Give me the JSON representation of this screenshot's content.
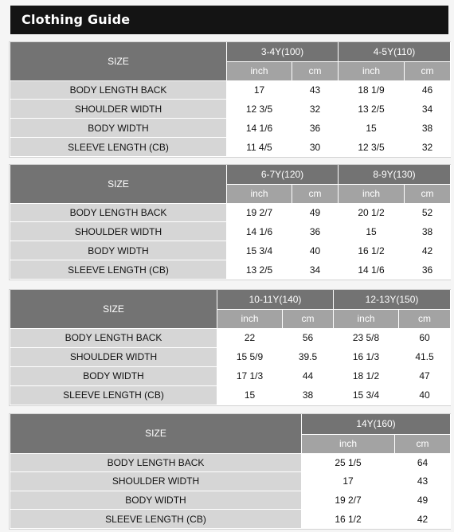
{
  "title": "Clothing Guide",
  "size_label": "SIZE",
  "unit_inch": "inch",
  "unit_cm": "cm",
  "rows": [
    "BODY LENGTH BACK",
    "SHOULDER WIDTH",
    "BODY WIDTH",
    "SLEEVE LENGTH (CB)"
  ],
  "tables": [
    {
      "groups": [
        {
          "size": "3-4Y(100)",
          "values": [
            [
              "17",
              "43"
            ],
            [
              "12 3/5",
              "32"
            ],
            [
              "14 1/6",
              "36"
            ],
            [
              "11 4/5",
              "30"
            ]
          ]
        },
        {
          "size": "4-5Y(110)",
          "values": [
            [
              "18 1/9",
              "46"
            ],
            [
              "13 2/5",
              "34"
            ],
            [
              "15",
              "38"
            ],
            [
              "12 3/5",
              "32"
            ]
          ]
        }
      ]
    },
    {
      "groups": [
        {
          "size": "6-7Y(120)",
          "values": [
            [
              "19 2/7",
              "49"
            ],
            [
              "14 1/6",
              "36"
            ],
            [
              "15 3/4",
              "40"
            ],
            [
              "13 2/5",
              "34"
            ]
          ]
        },
        {
          "size": "8-9Y(130)",
          "values": [
            [
              "20 1/2",
              "52"
            ],
            [
              "15",
              "38"
            ],
            [
              "16 1/2",
              "42"
            ],
            [
              "14 1/6",
              "36"
            ]
          ]
        }
      ]
    },
    {
      "groups": [
        {
          "size": "10-11Y(140)",
          "values": [
            [
              "22",
              "56"
            ],
            [
              "15 5/9",
              "39.5"
            ],
            [
              "17 1/3",
              "44"
            ],
            [
              "15",
              "38"
            ]
          ]
        },
        {
          "size": "12-13Y(150)",
          "values": [
            [
              "23 5/8",
              "60"
            ],
            [
              "16 1/3",
              "41.5"
            ],
            [
              "18 1/2",
              "47"
            ],
            [
              "15 3/4",
              "40"
            ]
          ]
        }
      ]
    },
    {
      "groups": [
        {
          "size": "14Y(160)",
          "values": [
            [
              "25 1/5",
              "64"
            ],
            [
              "17",
              "43"
            ],
            [
              "19 2/7",
              "49"
            ],
            [
              "16 1/2",
              "42"
            ]
          ]
        }
      ]
    }
  ]
}
